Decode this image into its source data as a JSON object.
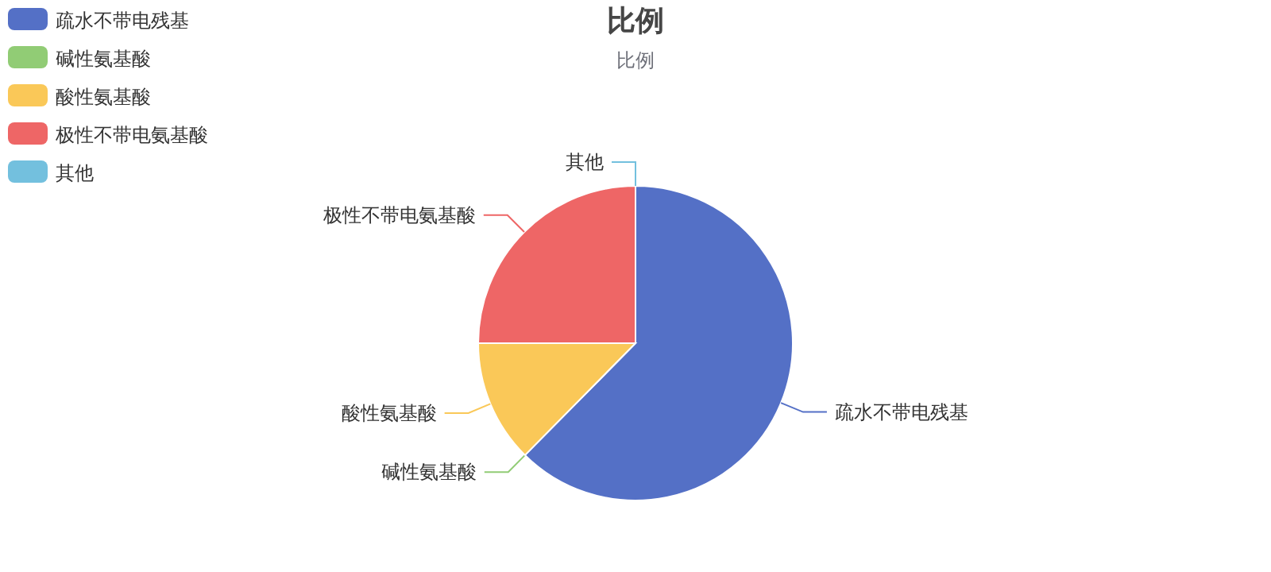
{
  "chart_data": {
    "type": "pie",
    "title": "比例",
    "subtitle": "比例",
    "categories": [
      "疏水不带电残基",
      "碱性氨基酸",
      "酸性氨基酸",
      "极性不带电氨基酸",
      "其他"
    ],
    "values": [
      62.4,
      0,
      12.6,
      25,
      0
    ],
    "colors": [
      "#5470c6",
      "#91cc75",
      "#fac858",
      "#ee6666",
      "#73c0de"
    ],
    "legend": "top left"
  }
}
